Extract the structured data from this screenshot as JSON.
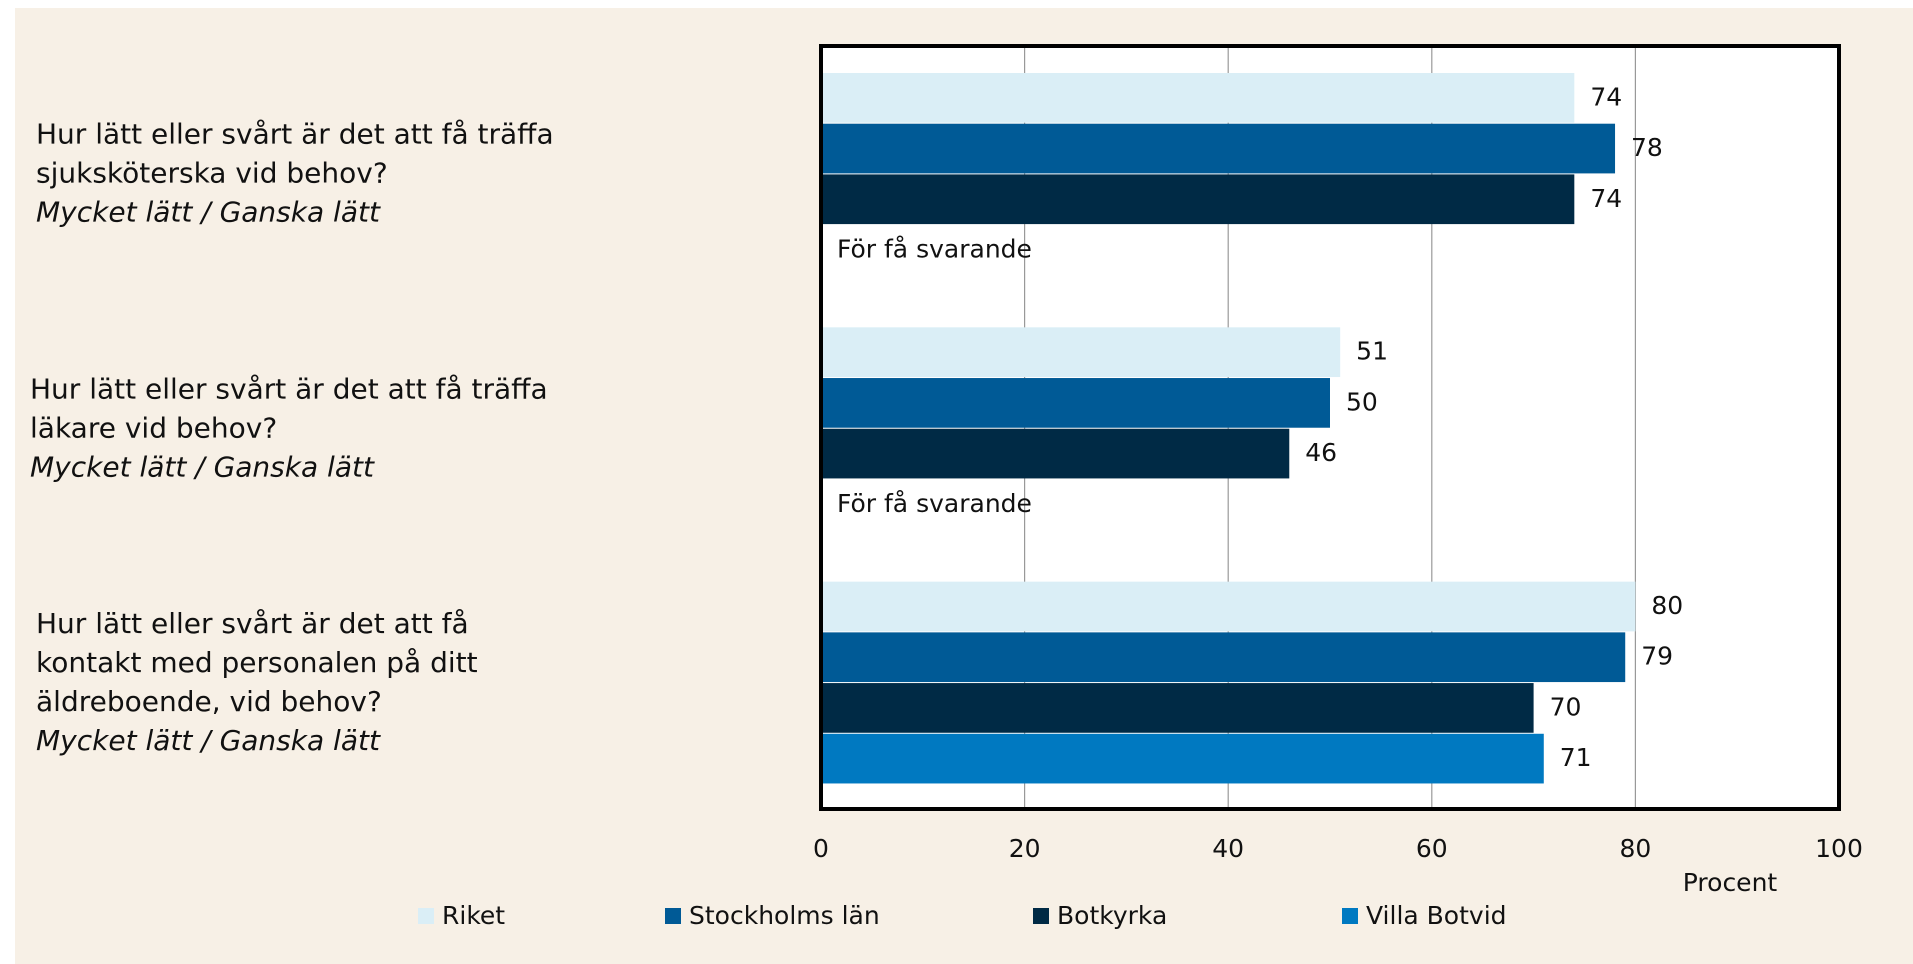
{
  "chart_data": {
    "type": "hbar",
    "categories": [
      "Hur lätt eller svårt är det att få träffa sjuksköterska vid behov?",
      "Hur lätt eller svårt är det att få träffa läkare vid behov?",
      "Hur lätt eller svårt är det att få kontakt med personalen på ditt äldreboende, vid behov?"
    ],
    "category_notes": [
      "Mycket lätt / Ganska lätt",
      "Mycket lätt / Ganska lätt",
      "Mycket lätt / Ganska lätt"
    ],
    "series": [
      {
        "name": "Riket",
        "color": "#daeef6",
        "values": [
          74,
          51,
          80
        ]
      },
      {
        "name": "Stockholms län",
        "color": "#005a96",
        "values": [
          78,
          50,
          79
        ]
      },
      {
        "name": "Botkyrka",
        "color": "#002a45",
        "values": [
          74,
          46,
          70
        ]
      },
      {
        "name": "Villa Botvid",
        "color": "#0079c1",
        "values": [
          null,
          null,
          71
        ]
      }
    ],
    "annotations": [
      "För få svarande",
      "För få svarande"
    ],
    "xlabel": "Procent",
    "xlim": [
      0,
      100
    ],
    "xticks": [
      0,
      20,
      40,
      60,
      80,
      100
    ],
    "grid": true
  }
}
